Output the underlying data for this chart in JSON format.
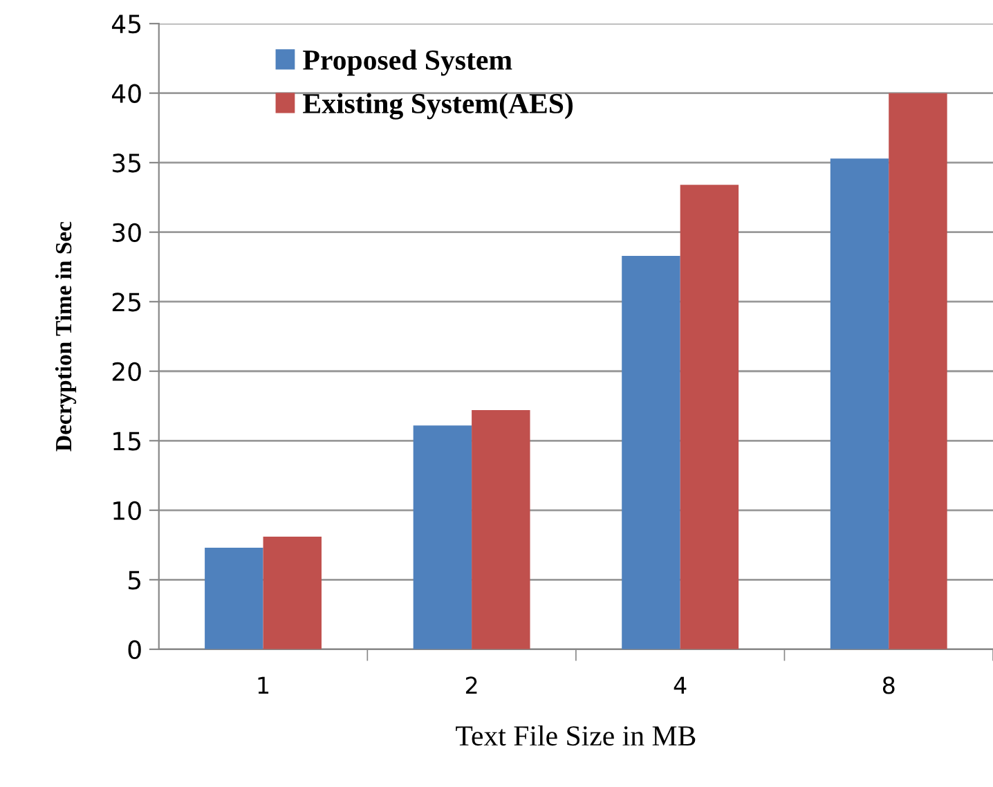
{
  "chart_data": {
    "type": "bar",
    "xlabel": "Text File Size in MB",
    "ylabel": "Decryption Time in Sec",
    "categories": [
      "1",
      "2",
      "4",
      "8"
    ],
    "series": [
      {
        "name": "Proposed System",
        "color": "#4f81bd",
        "values": [
          7.3,
          16.1,
          28.3,
          35.3
        ]
      },
      {
        "name": "Existing System(AES)",
        "color": "#c0504d",
        "values": [
          8.1,
          17.2,
          33.4,
          40.0
        ]
      }
    ],
    "ylim": [
      0,
      45
    ],
    "yticks": [
      0,
      5,
      10,
      15,
      20,
      25,
      30,
      35,
      40,
      45
    ],
    "grid": "y",
    "legend": "top left"
  }
}
